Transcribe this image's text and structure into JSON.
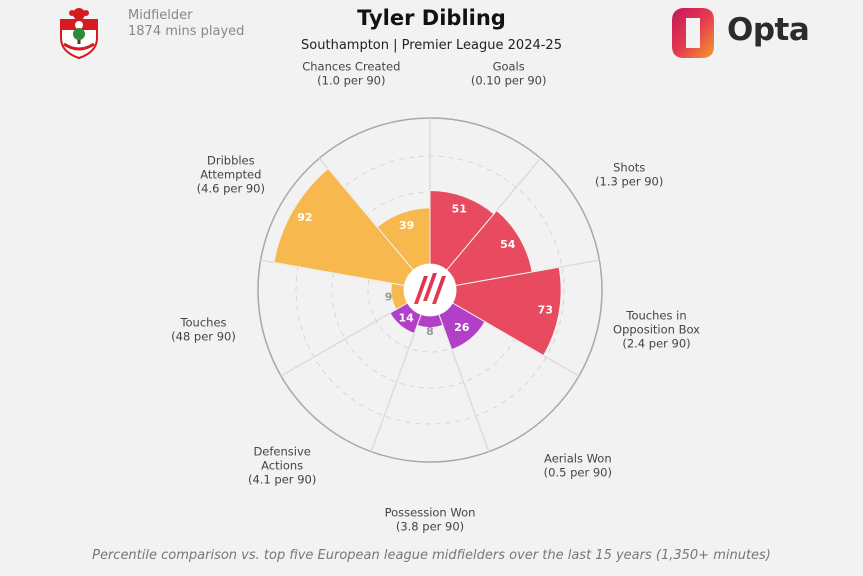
{
  "header": {
    "position": "Midfielder",
    "minutes": "1874 mins played",
    "title": "Tyler Dibling",
    "subtitle": "Southampton | Premier League 2024-25",
    "brand": "Opta"
  },
  "footer": {
    "note": "Percentile comparison vs. top five European league midfielders over the last 15 years (1,350+ minutes)"
  },
  "colors": {
    "attacking": "#e84a5f",
    "possession": "#f7b84e",
    "defending": "#b23fc7",
    "grid": "#cfcfcf"
  },
  "chart_data": {
    "type": "polar-bar",
    "range": [
      0,
      100
    ],
    "categories": [
      {
        "label": [
          "Goals",
          "(0.10 per 90)"
        ],
        "value": 51,
        "group": "attacking"
      },
      {
        "label": [
          "Shots",
          "(1.3 per 90)"
        ],
        "value": 54,
        "group": "attacking"
      },
      {
        "label": [
          "Touches in",
          "Opposition Box",
          "(2.4 per 90)"
        ],
        "value": 73,
        "group": "attacking"
      },
      {
        "label": [
          "Aerials Won",
          "(0.5 per 90)"
        ],
        "value": 26,
        "group": "defending"
      },
      {
        "label": [
          "Possession Won",
          "(3.8 per 90)"
        ],
        "value": 8,
        "group": "defending"
      },
      {
        "label": [
          "Defensive",
          "Actions",
          "(4.1 per 90)"
        ],
        "value": 14,
        "group": "defending"
      },
      {
        "label": [
          "Touches",
          "(48 per 90)"
        ],
        "value": 9,
        "group": "possession"
      },
      {
        "label": [
          "Dribbles",
          "Attempted",
          "(4.6 per 90)"
        ],
        "value": 92,
        "group": "possession"
      },
      {
        "label": [
          "Chances Created",
          "(1.0 per 90)"
        ],
        "value": 39,
        "group": "possession"
      }
    ]
  }
}
